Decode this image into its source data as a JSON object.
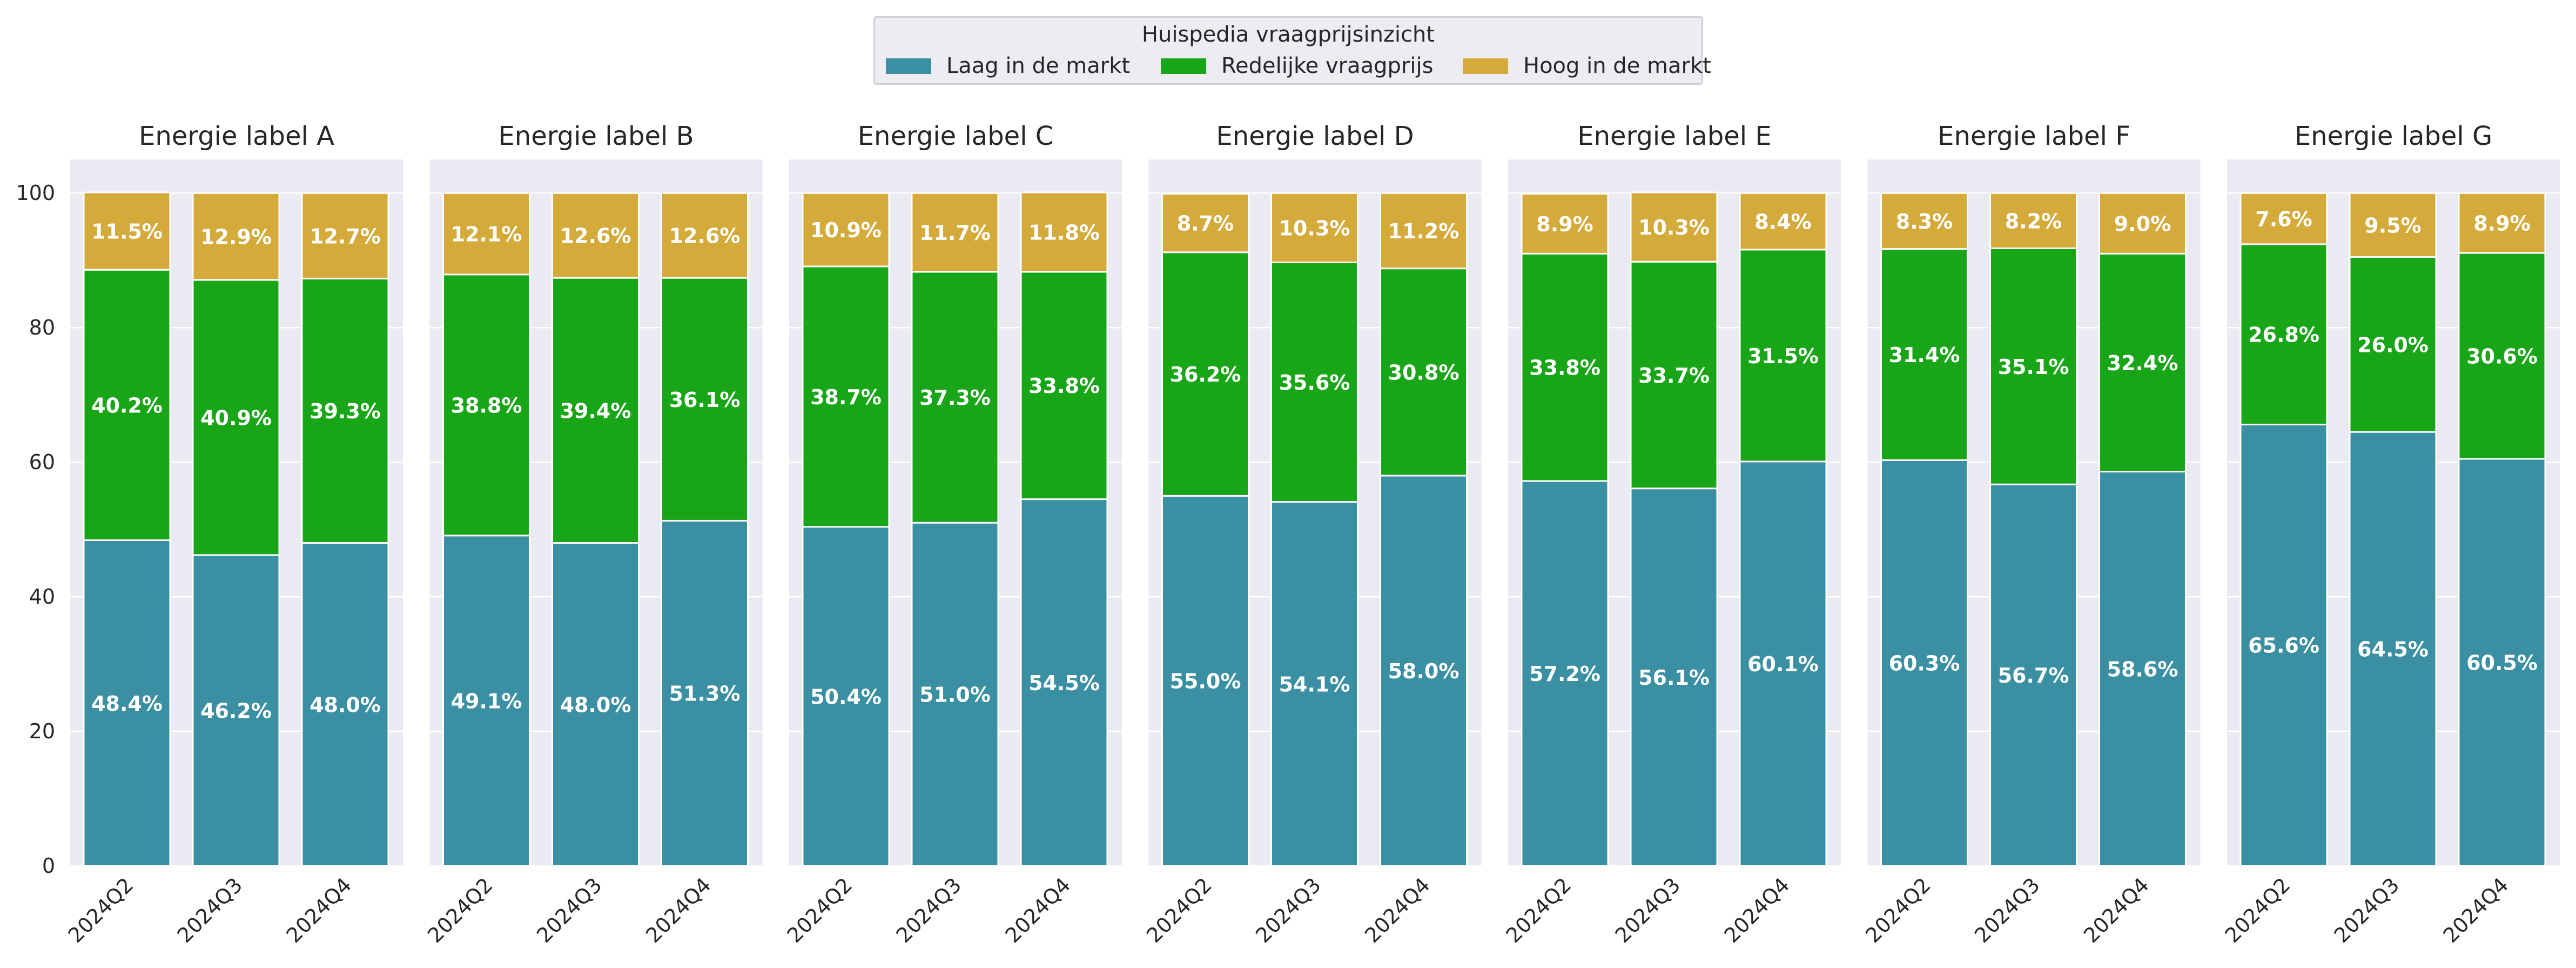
{
  "chart_data": {
    "type": "bar",
    "stacked": true,
    "legend": {
      "title": "Huispedia vraagprijsinzicht",
      "placement": "top-center",
      "entries": [
        {
          "label": "Laag in de markt",
          "color": "#3a8fa2"
        },
        {
          "label": "Redelijke vraagprijs",
          "color": "#18a518"
        },
        {
          "label": "Hoog in de markt",
          "color": "#d4aa3b"
        }
      ]
    },
    "categories": [
      "2024Q2",
      "2024Q3",
      "2024Q4"
    ],
    "yticks": [
      "0",
      "20",
      "40",
      "60",
      "80",
      "100"
    ],
    "ylim": [
      0,
      105
    ],
    "grid": true,
    "panels": [
      {
        "title": "Energie label A",
        "series": [
          {
            "name": "Laag in de markt",
            "values": [
              48.4,
              46.2,
              48.0
            ],
            "labels": [
              "48.4%",
              "46.2%",
              "48.0%"
            ]
          },
          {
            "name": "Redelijke vraagprijs",
            "values": [
              40.2,
              40.9,
              39.3
            ],
            "labels": [
              "40.2%",
              "40.9%",
              "39.3%"
            ]
          },
          {
            "name": "Hoog in de markt",
            "values": [
              11.5,
              12.9,
              12.7
            ],
            "labels": [
              "11.5%",
              "12.9%",
              "12.7%"
            ]
          }
        ]
      },
      {
        "title": "Energie label B",
        "series": [
          {
            "name": "Laag in de markt",
            "values": [
              49.1,
              48.0,
              51.3
            ],
            "labels": [
              "49.1%",
              "48.0%",
              "51.3%"
            ]
          },
          {
            "name": "Redelijke vraagprijs",
            "values": [
              38.8,
              39.4,
              36.1
            ],
            "labels": [
              "38.8%",
              "39.4%",
              "36.1%"
            ]
          },
          {
            "name": "Hoog in de markt",
            "values": [
              12.1,
              12.6,
              12.6
            ],
            "labels": [
              "12.1%",
              "12.6%",
              "12.6%"
            ]
          }
        ]
      },
      {
        "title": "Energie label C",
        "series": [
          {
            "name": "Laag in de markt",
            "values": [
              50.4,
              51.0,
              54.5
            ],
            "labels": [
              "50.4%",
              "51.0%",
              "54.5%"
            ]
          },
          {
            "name": "Redelijke vraagprijs",
            "values": [
              38.7,
              37.3,
              33.8
            ],
            "labels": [
              "38.7%",
              "37.3%",
              "33.8%"
            ]
          },
          {
            "name": "Hoog in de markt",
            "values": [
              10.9,
              11.7,
              11.8
            ],
            "labels": [
              "10.9%",
              "11.7%",
              "11.8%"
            ]
          }
        ]
      },
      {
        "title": "Energie label D",
        "series": [
          {
            "name": "Laag in de markt",
            "values": [
              55.0,
              54.1,
              58.0
            ],
            "labels": [
              "55.0%",
              "54.1%",
              "58.0%"
            ]
          },
          {
            "name": "Redelijke vraagprijs",
            "values": [
              36.2,
              35.6,
              30.8
            ],
            "labels": [
              "36.2%",
              "35.6%",
              "30.8%"
            ]
          },
          {
            "name": "Hoog in de markt",
            "values": [
              8.7,
              10.3,
              11.2
            ],
            "labels": [
              "8.7%",
              "10.3%",
              "11.2%"
            ]
          }
        ]
      },
      {
        "title": "Energie label E",
        "series": [
          {
            "name": "Laag in de markt",
            "values": [
              57.2,
              56.1,
              60.1
            ],
            "labels": [
              "57.2%",
              "56.1%",
              "60.1%"
            ]
          },
          {
            "name": "Redelijke vraagprijs",
            "values": [
              33.8,
              33.7,
              31.5
            ],
            "labels": [
              "33.8%",
              "33.7%",
              "31.5%"
            ]
          },
          {
            "name": "Hoog in de markt",
            "values": [
              8.9,
              10.3,
              8.4
            ],
            "labels": [
              "8.9%",
              "10.3%",
              "8.4%"
            ]
          }
        ]
      },
      {
        "title": "Energie label F",
        "series": [
          {
            "name": "Laag in de markt",
            "values": [
              60.3,
              56.7,
              58.6
            ],
            "labels": [
              "60.3%",
              "56.7%",
              "58.6%"
            ]
          },
          {
            "name": "Redelijke vraagprijs",
            "values": [
              31.4,
              35.1,
              32.4
            ],
            "labels": [
              "31.4%",
              "35.1%",
              "32.4%"
            ]
          },
          {
            "name": "Hoog in de markt",
            "values": [
              8.3,
              8.2,
              9.0
            ],
            "labels": [
              "8.3%",
              "8.2%",
              "9.0%"
            ]
          }
        ]
      },
      {
        "title": "Energie label G",
        "series": [
          {
            "name": "Laag in de markt",
            "values": [
              65.6,
              64.5,
              60.5
            ],
            "labels": [
              "65.6%",
              "64.5%",
              "60.5%"
            ]
          },
          {
            "name": "Redelijke vraagprijs",
            "values": [
              26.8,
              26.0,
              30.6
            ],
            "labels": [
              "26.8%",
              "26.0%",
              "30.6%"
            ]
          },
          {
            "name": "Hoog in de markt",
            "values": [
              7.6,
              9.5,
              8.9
            ],
            "labels": [
              "7.6%",
              "9.5%",
              "8.9%"
            ]
          }
        ]
      }
    ]
  }
}
